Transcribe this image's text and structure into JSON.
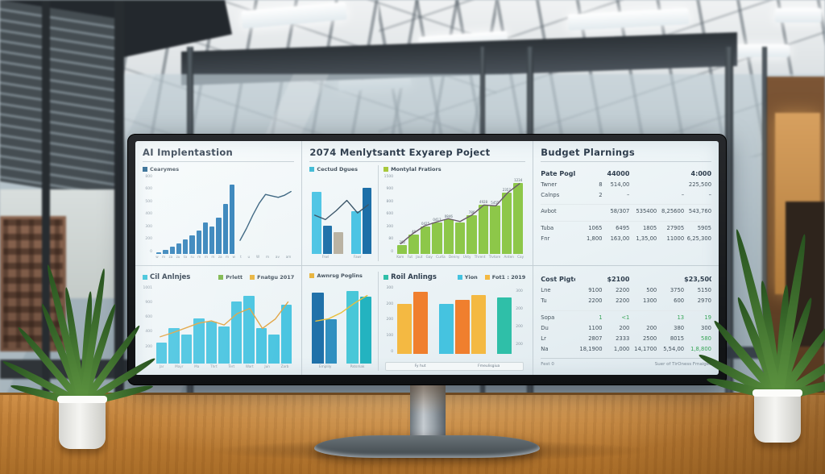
{
  "screen": {
    "ai_panel": {
      "title": "AI Implentastion",
      "legend": [
        {
          "label": "Cearymes",
          "color": "#1f5f8b"
        }
      ],
      "bar_chart": {
        "type": "bar",
        "values": [
          8,
          20,
          38,
          55,
          75,
          95,
          120,
          160,
          140,
          185,
          260,
          360
        ],
        "max": 400,
        "color": "#2e7fb8",
        "yticks": [
          "800",
          "600",
          "500",
          "400",
          "300",
          "200",
          "0"
        ],
        "xticks": [
          "w",
          "m",
          "za",
          "zu",
          "ta",
          "ru",
          "m",
          "rn",
          "m",
          "za",
          "m",
          "w"
        ]
      },
      "line_chart": {
        "type": "line",
        "values": [
          18,
          34,
          52,
          68,
          80,
          78,
          76,
          79,
          84
        ],
        "max": 100,
        "color": "#35607c",
        "xticks": [
          "t",
          "u",
          "W",
          "m",
          "av",
          "am"
        ]
      }
    },
    "oil_panel": {
      "legend_title": {
        "label": "Cil Anlnjes",
        "color": "#35c0d8"
      },
      "legend": [
        {
          "label": "Prlett",
          "color": "#7ab648"
        },
        {
          "label": "Fnatgu 2017",
          "color": "#e8b33c"
        }
      ],
      "bar_chart": {
        "type": "bar",
        "values": [
          170,
          290,
          240,
          365,
          340,
          300,
          505,
          555,
          290,
          235,
          480
        ],
        "max": 620,
        "color": "#45c3e0",
        "yticks": [
          "1001",
          "900",
          "600",
          "400",
          "200",
          "0"
        ],
        "xticks": [
          "Jar",
          "Mayr",
          "Ma",
          "Thrt",
          "Tert",
          "Wart",
          "Jun",
          "Zarb"
        ]
      },
      "line": {
        "type": "line",
        "values": [
          230,
          265,
          305,
          345,
          365,
          330,
          425,
          470,
          300,
          380,
          525
        ],
        "max": 620,
        "color": "#e0a23e"
      }
    },
    "expense_panel": {
      "title": "2074 Menlytsantt Exyarep Poject",
      "sub_bars": {
        "legend": [
          {
            "label": "Cectud Dgues",
            "color": "#3fb9d4"
          }
        ],
        "bar_chart": {
          "type": "bar",
          "values": [
            80,
            36,
            28,
            null,
            55,
            85
          ],
          "max": 100,
          "colors": [
            "#4cc4e4",
            "#1d6fa8",
            "#b9b2a2",
            null,
            "#4cc4e4",
            "#1d6fa8"
          ],
          "xticks": [
            "Frwl",
            "Fawr"
          ]
        },
        "line": {
          "type": "line",
          "values": [
            52,
            46,
            58,
            72,
            55,
            66
          ],
          "max": 100,
          "color": "#3a5568"
        }
      },
      "sub_green": {
        "legend": [
          {
            "label": "Montylal Fratiors",
            "color": "#a8c83c"
          }
        ],
        "bar_chart": {
          "type": "bar",
          "values": [
            60,
            128,
            182,
            208,
            232,
            212,
            258,
            328,
            322,
            412,
            478
          ],
          "max": 520,
          "color": "#8dc749",
          "labels": [
            "282",
            "40",
            "0425",
            "0413",
            "0846",
            "",
            "786",
            "4928",
            "5455",
            "2357",
            "1234"
          ],
          "yticks": [
            "1500",
            "900",
            "800",
            "600",
            "300",
            "80",
            "0"
          ],
          "xticks": [
            "Kom",
            "Fut",
            "Jaut",
            "Gay",
            "Curta",
            "Denny",
            "Unty",
            "Thrent",
            "Trvtore",
            "Anten",
            "Cay"
          ]
        },
        "line": {
          "type": "line",
          "values": [
            70,
            140,
            195,
            222,
            246,
            226,
            272,
            342,
            336,
            428,
            492
          ],
          "max": 520,
          "color": "#6a5a6a"
        }
      },
      "sub_awnrsg": {
        "legend": [
          {
            "label": "Awnrsg Poglins",
            "color": "#e8b33c"
          }
        ],
        "bar_chart": {
          "type": "bar",
          "values": [
            88,
            55,
            null,
            90,
            83
          ],
          "max": 100,
          "colors": [
            "#1d6fa8",
            "#2f8fc0",
            null,
            "#49c7d8",
            "#23b3c0"
          ],
          "xticks": [
            "Emplily",
            "Patsmak"
          ]
        },
        "line": {
          "type": "line",
          "values": [
            55,
            58,
            66,
            78,
            88
          ],
          "max": 100,
          "color": "#e8c03c"
        }
      },
      "sub_roil": {
        "legend_title": {
          "label": "Roil Anlings",
          "color": "#2fbfa8"
        },
        "legend": [
          {
            "label": "Yion",
            "color": "#45c3e0"
          },
          {
            "label": "Fot1 : 2019",
            "color": "#f4b942"
          }
        ],
        "bar_chart": {
          "type": "bar",
          "values": [
            270,
            335,
            null,
            270,
            295,
            320,
            null,
            305
          ],
          "max": 360,
          "colors": [
            "#f4b942",
            "#f07f2e",
            null,
            "#45c3e0",
            "#f07f2e",
            "#f4b942",
            null,
            "#2fbfa8"
          ],
          "yticks": [
            "300",
            "200",
            "200",
            "100",
            "0"
          ],
          "yticks_right": [
            "300",
            "200",
            "200",
            "200"
          ],
          "group_labels": [
            "Fy hut",
            "Fmeulisgiua"
          ]
        }
      }
    },
    "budget_panel": {
      "title": "Budget Plarnings",
      "table": {
        "rows": [
          [
            "Pate Pogles",
            "",
            "44000",
            "",
            "",
            "4:000"
          ],
          [
            "Twner",
            "8",
            "514,00",
            "",
            "",
            "225,500"
          ],
          [
            "Calnps",
            "2",
            "–",
            "",
            "–",
            "–"
          ],
          [
            "Avbot",
            "",
            "58/307",
            "535400",
            "8,25600",
            "543,760"
          ],
          [
            "Tuba",
            "1065",
            "6495",
            "1805",
            "27905",
            "5905"
          ],
          [
            "Fnr",
            "1,800",
            "163,00",
            "1,35,00",
            "11000",
            "6,25,300"
          ]
        ],
        "bold_rows": [
          0
        ],
        "spacer_rows": [
          3,
          4
        ]
      },
      "cost_table": {
        "rows": [
          [
            "Cost Pigton",
            "",
            "$2100",
            "",
            "",
            "$23,500"
          ],
          [
            "Lne",
            "9100",
            "2200",
            "500",
            "3750",
            "5150"
          ],
          [
            "Tu",
            "2200",
            "2200",
            "1300",
            "600",
            "2970"
          ],
          [
            "Sopa",
            "1",
            "<1",
            "",
            "13",
            "19"
          ],
          [
            "Du",
            "1100",
            "200",
            "200",
            "380",
            "300"
          ],
          [
            "Lr",
            "2807",
            "2333",
            "2500",
            "8015",
            "580"
          ],
          [
            "Na",
            "18,1900",
            "1,000",
            "14,1700",
            "5,54,00",
            "1,8,800"
          ]
        ],
        "bold_rows": [
          0
        ],
        "spacer_rows": [
          3
        ],
        "green_cells": [
          "3-1",
          "3-2",
          "3-4",
          "3-5",
          "5-5",
          "6-5"
        ],
        "footer_left": "Fest 0",
        "footer_right": "Suer of TirOness Fmaiges"
      }
    }
  }
}
